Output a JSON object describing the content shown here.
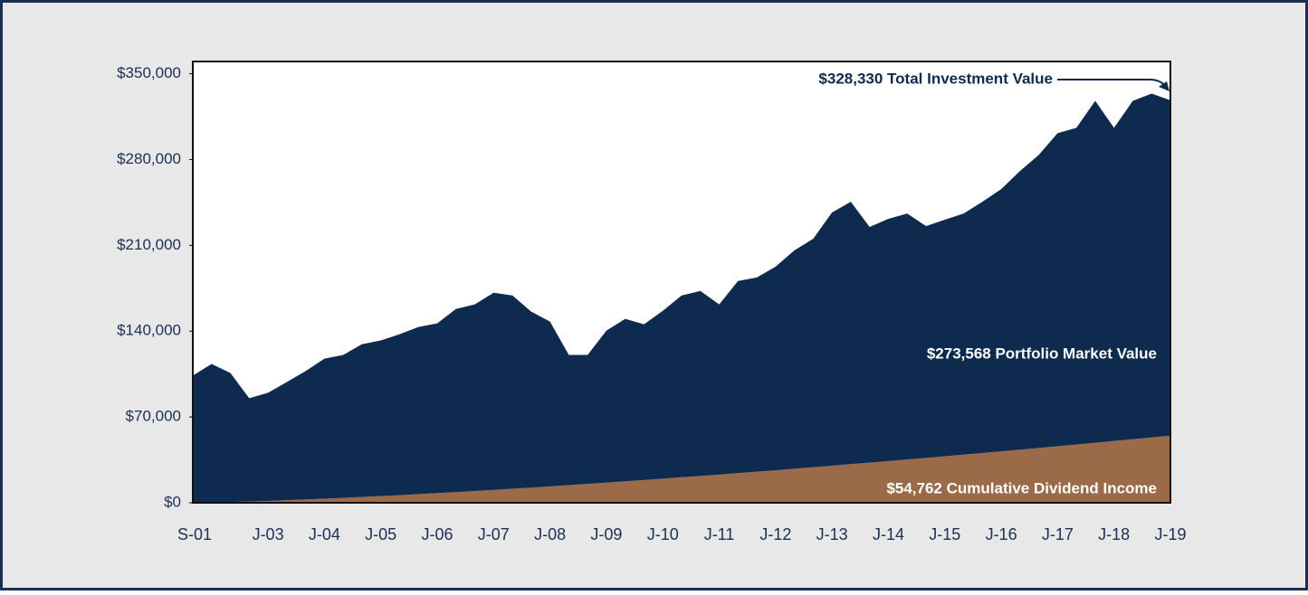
{
  "chart_data": {
    "type": "stacked_area",
    "categories": [
      "S-01",
      null,
      null,
      null,
      "J-03",
      null,
      null,
      "J-04",
      null,
      null,
      "J-05",
      null,
      null,
      "J-06",
      null,
      null,
      "J-07",
      null,
      null,
      "J-08",
      null,
      null,
      "J-09",
      null,
      null,
      "J-10",
      null,
      null,
      "J-11",
      null,
      null,
      "J-12",
      null,
      null,
      "J-13",
      null,
      null,
      "J-14",
      null,
      null,
      "J-15",
      null,
      null,
      "J-16",
      null,
      null,
      "J-17",
      null,
      null,
      "J-18",
      null,
      null,
      "J-19"
    ],
    "series": [
      {
        "color": "#9a6a49",
        "values": [
          0,
          200,
          600,
          1000,
          1500,
          2100,
          2700,
          3300,
          4000,
          4700,
          5400,
          6200,
          7000,
          7900,
          8700,
          9600,
          10500,
          11400,
          12400,
          13400,
          14400,
          15400,
          16400,
          17500,
          18500,
          19600,
          20800,
          21900,
          23000,
          24200,
          25400,
          26500,
          27800,
          29000,
          30200,
          31500,
          32700,
          34000,
          35300,
          36600,
          37900,
          39300,
          40600,
          42000,
          43300,
          44700,
          46100,
          47500,
          49000,
          50400,
          51800,
          53300,
          54762
        ]
      },
      {
        "color": "#0f2a4f",
        "values": [
          103700,
          113000,
          105300,
          84300,
          88200,
          96400,
          104700,
          114300,
          116600,
          124700,
          127000,
          131300,
          136400,
          138400,
          149400,
          152200,
          160800,
          157700,
          143500,
          134400,
          106200,
          105200,
          124000,
          132500,
          127100,
          137000,
          148300,
          150900,
          138800,
          156700,
          158400,
          166100,
          178100,
          186400,
          206600,
          214100,
          192300,
          197600,
          200700,
          189100,
          193000,
          196700,
          205000,
          213900,
          227300,
          239100,
          255400,
          258400,
          278900,
          255500,
          276100,
          280500,
          273568
        ]
      }
    ],
    "ylim": [
      0,
      360000
    ],
    "yticks": [
      {
        "value": 0,
        "label": "$0"
      },
      {
        "value": 70000,
        "label": "$70,000"
      },
      {
        "value": 140000,
        "label": "$140,000"
      },
      {
        "value": 210000,
        "label": "$210,000"
      },
      {
        "value": 280000,
        "label": "$280,000"
      },
      {
        "value": 350000,
        "label": "$350,000"
      }
    ],
    "annotations": [
      "$328,330 Total Investment Value",
      "$273,568 Portfolio Market Value",
      "$54,762 Cumulative Dividend Income"
    ]
  }
}
